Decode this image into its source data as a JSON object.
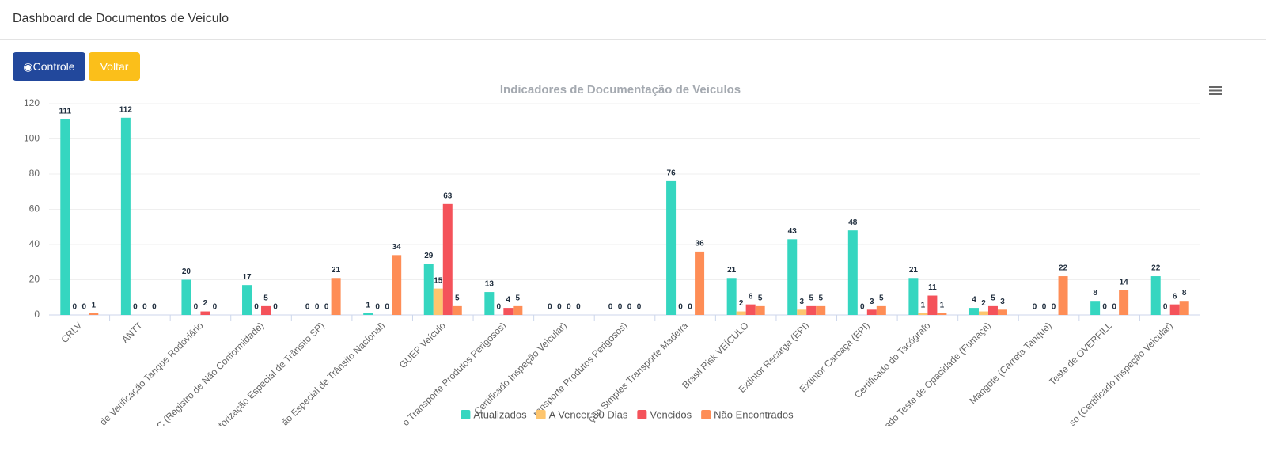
{
  "header": {
    "title": "Dashboard de Documentos de Veiculo"
  },
  "buttons": {
    "controle": "Controle",
    "voltar": "Voltar"
  },
  "chart_data": {
    "type": "bar",
    "title": "Indicadores de Documentação de Veiculos",
    "categories": [
      "CRLV",
      "ANTT",
      "de Verificação Tanque Rodoviário",
      "C (Registro de Não Conformidade)",
      "torização Especial de Trânsito SP)",
      "ão Especial de Trânsito Nacional)",
      "GUEP Veículo",
      "o Transporte Produtos Perigosos)",
      "Certificado Inspeção Veicular)",
      "ransporte Produtos Perigosos)",
      "ção Simples Transporte Madeira",
      "Brasil Risk VEÍCULO",
      "Extintor Recarga (EPI)",
      "Extintor Carcaça (EPI)",
      "Certificado do Tacógrafo",
      "ado Teste de Opacidade (Fumaça)",
      "Mangote (Carreta Tanque)",
      "Teste de OVERFILL",
      "so (Certificado Inspeção Veicular)"
    ],
    "series": [
      {
        "name": "Atualizados",
        "color": "#35d6c0",
        "values": [
          111,
          112,
          20,
          17,
          0,
          1,
          29,
          13,
          0,
          0,
          76,
          21,
          43,
          48,
          21,
          4,
          0,
          8,
          22
        ]
      },
      {
        "name": "A Vencer 30 Dias",
        "color": "#fdc56e",
        "values": [
          0,
          0,
          0,
          0,
          0,
          0,
          15,
          0,
          0,
          0,
          0,
          2,
          3,
          0,
          1,
          2,
          0,
          0,
          0
        ]
      },
      {
        "name": "Vencidos",
        "color": "#f4525a",
        "values": [
          0,
          0,
          2,
          5,
          0,
          0,
          63,
          4,
          0,
          0,
          0,
          6,
          5,
          3,
          11,
          5,
          0,
          0,
          6
        ]
      },
      {
        "name": "Não Encontrados",
        "color": "#fe8d56",
        "values": [
          1,
          0,
          0,
          0,
          21,
          34,
          5,
          5,
          0,
          0,
          36,
          5,
          5,
          5,
          1,
          3,
          22,
          14,
          8
        ]
      }
    ],
    "ylim": [
      0,
      120
    ],
    "yticks": [
      0,
      20,
      40,
      60,
      80,
      100,
      120
    ],
    "grid": true,
    "legend": "bottom"
  }
}
